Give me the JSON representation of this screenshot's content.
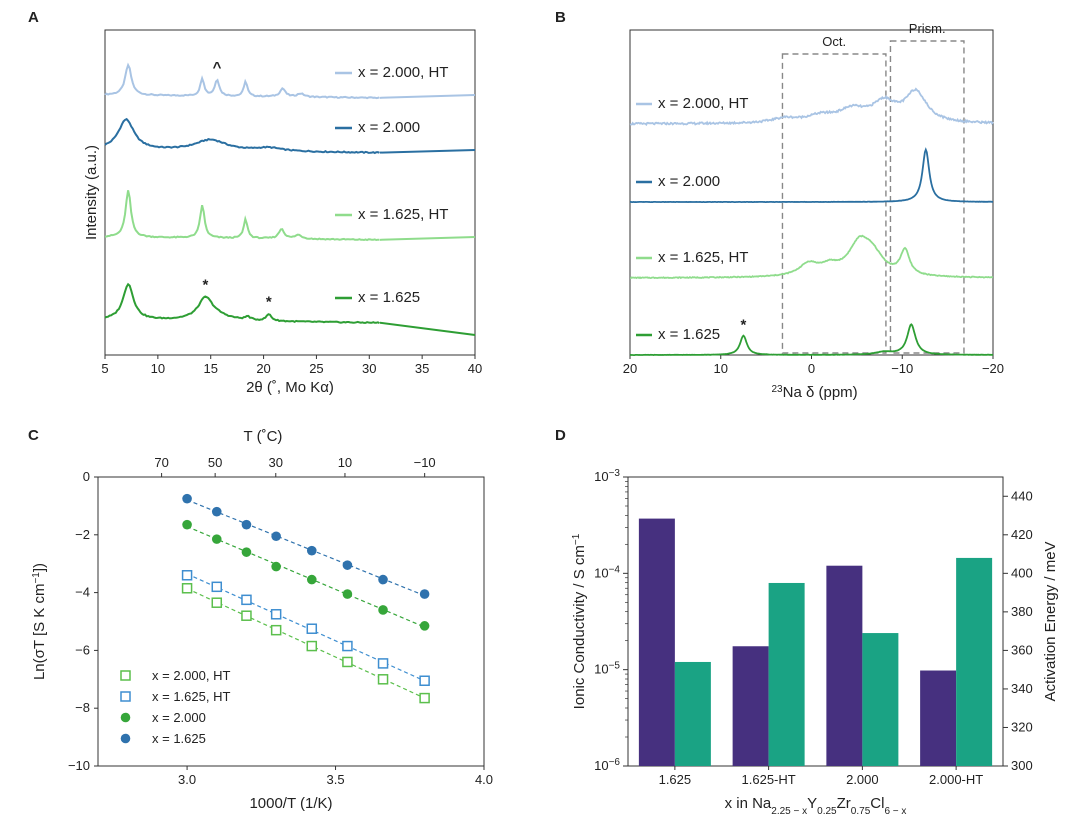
{
  "panels": [
    "A",
    "B",
    "C",
    "D"
  ],
  "chart_data": [
    {
      "id": "A",
      "type": "line",
      "xlabel": "2θ (˚, Mo Kα)",
      "ylabel": "Intensity (a.u.)",
      "xlim": [
        5,
        40
      ],
      "xticks": [
        5,
        10,
        15,
        20,
        25,
        30,
        35,
        40
      ],
      "series": [
        {
          "name": "x = 2.000, HT",
          "color": "#a9c4e4",
          "offset": 3,
          "baseline": 0.0,
          "peaks": [
            [
              7.2,
              0.55,
              0.35
            ],
            [
              14.2,
              0.32,
              0.22
            ],
            [
              15.6,
              0.3,
              0.25
            ],
            [
              18.3,
              0.28,
              0.2
            ],
            [
              21.8,
              0.15,
              0.3
            ],
            [
              23.5,
              0.06,
              0.4
            ]
          ]
        },
        {
          "name": "x = 2.000",
          "color": "#2a6fa1",
          "offset": 2,
          "baseline": 0.0,
          "peaks": [
            [
              7.0,
              0.55,
              0.9
            ],
            [
              15.0,
              0.2,
              1.8
            ],
            [
              20.5,
              0.06,
              1.5
            ]
          ]
        },
        {
          "name": "x = 1.625, HT",
          "color": "#8fdc8c",
          "offset": 1,
          "baseline": 0.0,
          "peaks": [
            [
              7.2,
              0.85,
              0.3
            ],
            [
              14.2,
              0.6,
              0.25
            ],
            [
              18.3,
              0.35,
              0.22
            ],
            [
              21.7,
              0.18,
              0.3
            ],
            [
              23.3,
              0.07,
              0.4
            ]
          ]
        },
        {
          "name": "x = 1.625",
          "color": "#2e9e34",
          "offset": 0,
          "baseline": 0.0,
          "peaks": [
            [
              7.2,
              0.65,
              0.6
            ],
            [
              14.5,
              0.35,
              0.8
            ],
            [
              18.5,
              0.06,
              0.3
            ],
            [
              20.5,
              0.12,
              0.3
            ],
            [
              15.2,
              0.1,
              1.8
            ]
          ]
        }
      ],
      "annotations": [
        {
          "text": "^",
          "x": 15.6,
          "series": "x = 2.000, HT"
        },
        {
          "text": "*",
          "x": 14.5,
          "series": "x = 1.625"
        },
        {
          "text": "*",
          "x": 20.5,
          "series": "x = 1.625"
        }
      ]
    },
    {
      "id": "B",
      "type": "line",
      "xlabel": "23Na δ (ppm)",
      "xlabel_sup": "23",
      "xlabel_main": "Na δ (ppm)",
      "xlim": [
        20,
        -20
      ],
      "xticks": [
        20,
        10,
        0,
        -10,
        -20
      ],
      "xtick_labels": [
        "20",
        "10",
        "0",
        "−10",
        "−20"
      ],
      "series": [
        {
          "name": "x = 2.000, HT",
          "color": "#a9c4e4",
          "offset": 3,
          "peaks": [
            [
              3.0,
              0.08,
              1.6
            ],
            [
              -1.0,
              0.12,
              2.0
            ],
            [
              -4.5,
              0.22,
              1.8
            ],
            [
              -8.0,
              0.35,
              1.6
            ],
            [
              -11.5,
              0.55,
              1.4
            ]
          ]
        },
        {
          "name": "x = 2.000",
          "color": "#2a6fa1",
          "offset": 2,
          "peaks": [
            [
              -12.6,
              0.95,
              0.45
            ]
          ]
        },
        {
          "name": "x = 1.625, HT",
          "color": "#8fdc8c",
          "offset": 1,
          "peaks": [
            [
              0.3,
              0.22,
              1.3
            ],
            [
              -2.0,
              0.15,
              1.2
            ],
            [
              -5.3,
              0.58,
              1.5
            ],
            [
              -6.8,
              0.3,
              1.4
            ],
            [
              -10.3,
              0.45,
              0.6
            ]
          ]
        },
        {
          "name": "x = 1.625",
          "color": "#2e9e34",
          "offset": 0,
          "peaks": [
            [
              7.5,
              0.35,
              0.45
            ],
            [
              -11.0,
              0.55,
              0.55
            ],
            [
              -8.0,
              0.05,
              1.2
            ]
          ]
        }
      ],
      "regions": [
        {
          "label": "Oct.",
          "from": 3.2,
          "to": -8.2
        },
        {
          "label": "Prism.",
          "from": -8.7,
          "to": -16.8
        }
      ],
      "annotations": [
        {
          "text": "*",
          "x": 7.5,
          "series": "x = 1.625"
        }
      ]
    },
    {
      "id": "C",
      "type": "scatter",
      "xlabel": "1000/T (1/K)",
      "ylabel": "Ln(σT [S K cm−1])",
      "ylabel_main": "Ln(σT [S K cm",
      "ylabel_sup": "−1",
      "ylabel_end": "])",
      "top_xlabel": "T (˚C)",
      "xlim": [
        2.7,
        4.0
      ],
      "ylim": [
        -10,
        0
      ],
      "xticks": [
        3.0,
        3.5,
        4.0
      ],
      "xtick_labels": [
        "3.0",
        "3.5",
        "4.0"
      ],
      "yticks": [
        0,
        -2,
        -4,
        -6,
        -8,
        -10
      ],
      "ytick_labels": [
        "0",
        "−2",
        "−4",
        "−6",
        "−8",
        "−10"
      ],
      "top_ticks": [
        70,
        50,
        30,
        10,
        -10
      ],
      "top_tick_labels": [
        "70",
        "50",
        "30",
        "10",
        "−10"
      ],
      "x": [
        3.0,
        3.1,
        3.2,
        3.3,
        3.42,
        3.54,
        3.66,
        3.8
      ],
      "series": [
        {
          "name": "x = 2.000, HT",
          "color": "#5bbf4c",
          "marker": "open-square",
          "values": [
            -3.85,
            -4.35,
            -4.8,
            -5.3,
            -5.85,
            -6.4,
            -7.0,
            -7.65
          ]
        },
        {
          "name": "x = 1.625, HT",
          "color": "#3e8ed0",
          "marker": "open-square",
          "values": [
            -3.4,
            -3.8,
            -4.25,
            -4.75,
            -5.25,
            -5.85,
            -6.45,
            -7.05
          ]
        },
        {
          "name": "x = 2.000",
          "color": "#36a63a",
          "marker": "filled-circle",
          "values": [
            -1.65,
            -2.15,
            -2.6,
            -3.1,
            -3.55,
            -4.05,
            -4.6,
            -5.15
          ]
        },
        {
          "name": "x = 1.625",
          "color": "#2f72ad",
          "marker": "filled-circle",
          "values": [
            -0.75,
            -1.2,
            -1.65,
            -2.05,
            -2.55,
            -3.05,
            -3.55,
            -4.05
          ]
        }
      ],
      "legend_position": "lower-left"
    },
    {
      "id": "D",
      "type": "bar",
      "xlabel_main": "x in Na",
      "xlabel_parts": [
        "x in Na",
        "2.25 − x",
        "Y",
        "0.25",
        "Zr",
        "0.75",
        "Cl",
        "6 − x"
      ],
      "categories": [
        "1.625",
        "1.625-HT",
        "2.000",
        "2.000-HT"
      ],
      "series": [
        {
          "name": "Ionic Conductivity",
          "color": "#46307f",
          "axis": "left",
          "scale": "log",
          "values": [
            0.00037,
            1.75e-05,
            0.00012,
            9.8e-06
          ]
        },
        {
          "name": "Activation Energy",
          "color": "#1aa384",
          "axis": "right",
          "scale": "linear",
          "values": [
            354,
            395,
            369,
            408
          ]
        }
      ],
      "ylabel_left": "Ionic Conductivity / S cm",
      "ylabel_left_sup": "−1",
      "ylabel_right": "Activation Energy / meV",
      "left_color": "#4a3a92",
      "right_color": "#1aa384",
      "ylim_left_exp": [
        -6,
        -3
      ],
      "left_ticks": [
        {
          "base": "10",
          "exp": "−3",
          "value": -3
        },
        {
          "base": "10",
          "exp": "−4",
          "value": -4
        },
        {
          "base": "10",
          "exp": "−5",
          "value": -5
        },
        {
          "base": "10",
          "exp": "−6",
          "value": -6
        }
      ],
      "ylim_right": [
        300,
        450
      ],
      "right_ticks": [
        300,
        320,
        340,
        360,
        380,
        400,
        420,
        440
      ]
    }
  ]
}
